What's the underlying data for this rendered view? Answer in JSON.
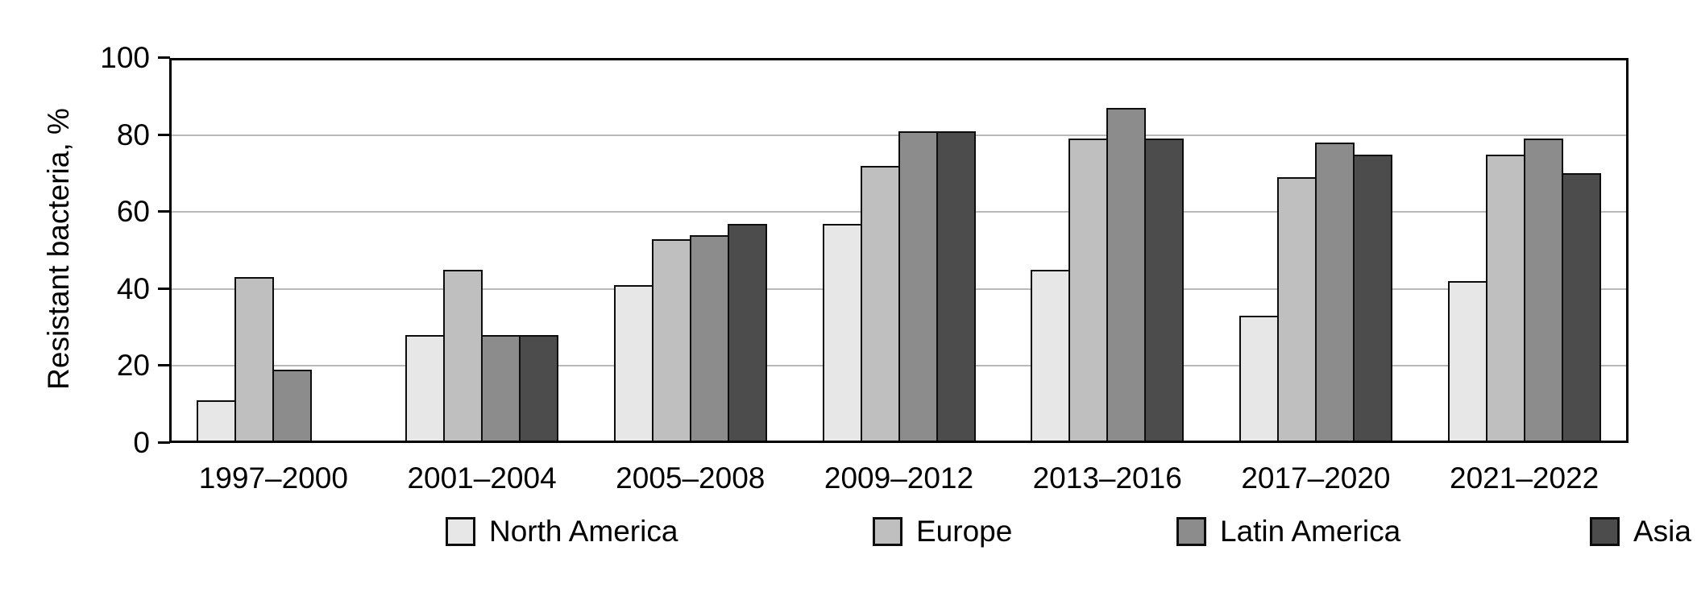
{
  "chart_data": {
    "type": "bar",
    "title": "",
    "ylabel": "Resistant bacteria, %",
    "xlabel": "",
    "ylim": [
      0,
      100
    ],
    "yticks": [
      0,
      20,
      40,
      60,
      80,
      100
    ],
    "gridlines": [
      20,
      40,
      60,
      80
    ],
    "grid": "horizontal",
    "legend_position": "bottom",
    "categories": [
      "1997–2000",
      "2001–2004",
      "2005–2008",
      "2009–2012",
      "2013–2016",
      "2017–2020",
      "2021–2022"
    ],
    "series": [
      {
        "name": "North America",
        "color": "#e7e7e7",
        "values": [
          11,
          28,
          41,
          57,
          45,
          33,
          42
        ]
      },
      {
        "name": "Europe",
        "color": "#bfbfbf",
        "values": [
          43,
          45,
          53,
          72,
          79,
          69,
          75
        ]
      },
      {
        "name": "Latin America",
        "color": "#8c8c8c",
        "values": [
          19,
          28,
          54,
          81,
          87,
          78,
          79
        ]
      },
      {
        "name": "Asia",
        "color": "#4c4c4c",
        "values": [
          null,
          28,
          57,
          81,
          79,
          75,
          70
        ]
      }
    ],
    "colors": {
      "bar_border": "#0d0d0d",
      "gridline": "#b9b9b9",
      "axis": "#000000",
      "text": "#000000",
      "background": "#ffffff"
    }
  }
}
